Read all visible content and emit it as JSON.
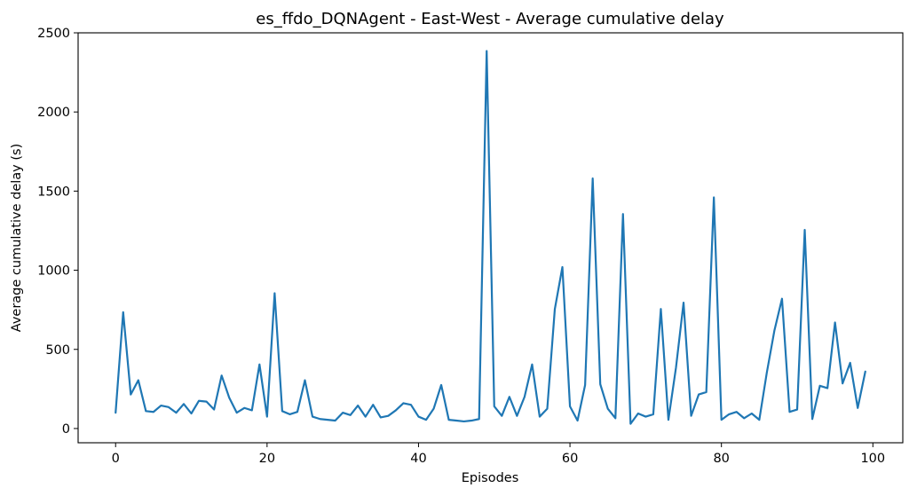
{
  "chart_data": {
    "type": "line",
    "title": "es_ffdo_DQNAgent - East-West - Average cumulative delay",
    "xlabel": "Episodes",
    "ylabel": "Average cumulative delay (s)",
    "xlim": [
      -4.95,
      103.95
    ],
    "ylim": [
      -90,
      2500
    ],
    "xticks": [
      0,
      20,
      40,
      60,
      80,
      100
    ],
    "yticks": [
      0,
      500,
      1000,
      1500,
      2000,
      2500
    ],
    "grid": false,
    "colors": {
      "series": "#1f77b4"
    },
    "series": [
      {
        "x": [
          0,
          1,
          2,
          3,
          4,
          5,
          6,
          7,
          8,
          9,
          10,
          11,
          12,
          13,
          14,
          15,
          16,
          17,
          18,
          19,
          20,
          21,
          22,
          23,
          24,
          25,
          26,
          27,
          28,
          29,
          30,
          31,
          32,
          33,
          34,
          35,
          36,
          37,
          38,
          39,
          40,
          41,
          42,
          43,
          44,
          45,
          46,
          47,
          48,
          49,
          50,
          51,
          52,
          53,
          54,
          55,
          56,
          57,
          58,
          59,
          60,
          61,
          62,
          63,
          64,
          65,
          66,
          67,
          68,
          69,
          70,
          71,
          72,
          73,
          74,
          75,
          76,
          77,
          78,
          79,
          80,
          81,
          82,
          83,
          84,
          85,
          86,
          87,
          88,
          89,
          90,
          91,
          92,
          93,
          94,
          95,
          96,
          97,
          98,
          99
        ],
        "values": [
          100,
          735,
          215,
          305,
          110,
          105,
          145,
          135,
          100,
          155,
          95,
          175,
          170,
          120,
          335,
          195,
          100,
          130,
          115,
          405,
          75,
          855,
          110,
          90,
          105,
          305,
          75,
          60,
          55,
          50,
          100,
          85,
          145,
          75,
          150,
          70,
          80,
          115,
          160,
          150,
          75,
          55,
          125,
          275,
          55,
          50,
          45,
          50,
          60,
          2385,
          140,
          80,
          200,
          80,
          200,
          405,
          75,
          125,
          755,
          1020,
          140,
          50,
          275,
          1580,
          280,
          125,
          65,
          1355,
          30,
          95,
          75,
          90,
          755,
          55,
          385,
          795,
          80,
          215,
          230,
          1460,
          55,
          90,
          105,
          65,
          95,
          55,
          355,
          620,
          820,
          105,
          120,
          1255,
          60,
          270,
          255,
          670,
          285,
          415,
          130,
          360
        ]
      }
    ]
  }
}
